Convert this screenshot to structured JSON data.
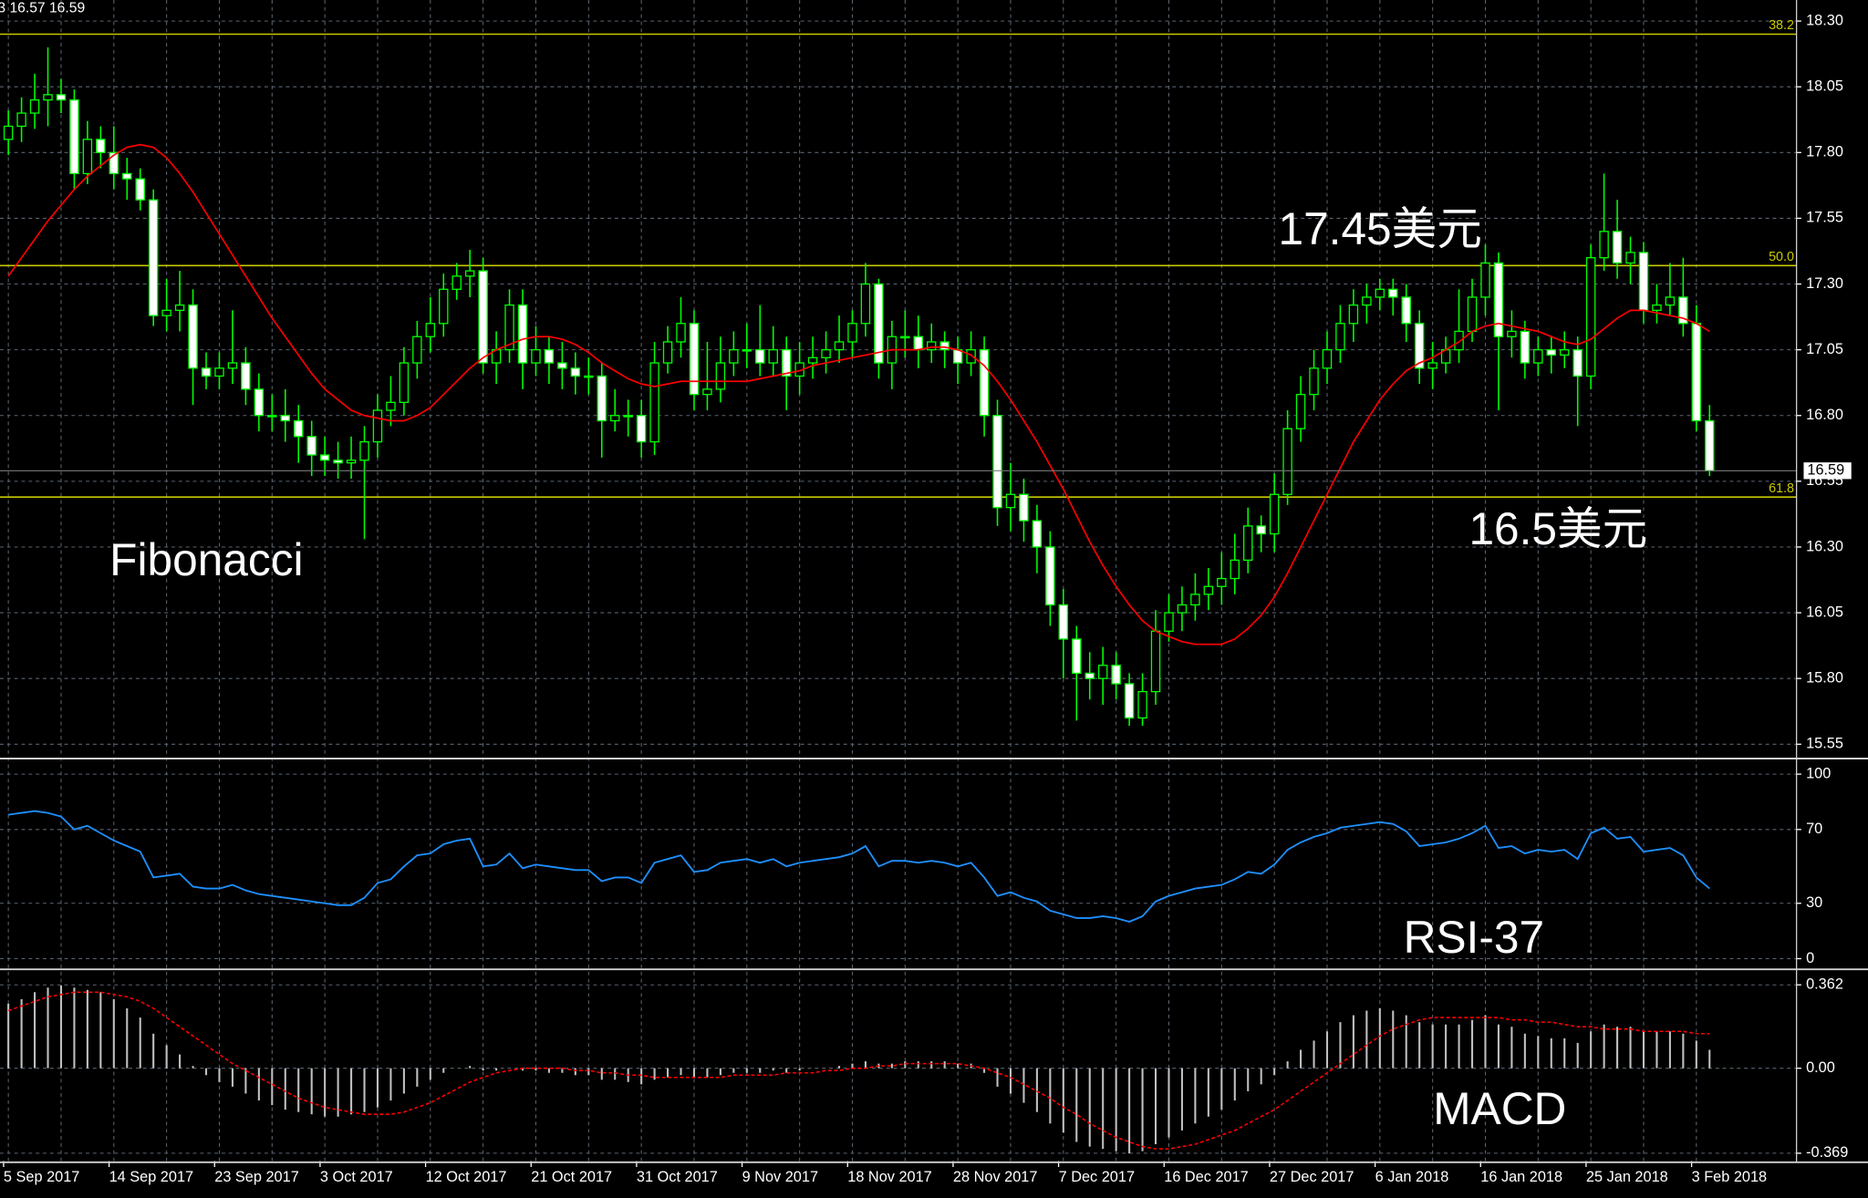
{
  "chart_data": [
    {
      "type": "candlestick",
      "header": "3 16.57 16.59",
      "annotations": [
        "17.45美元",
        "16.5美元",
        "Fibonacci"
      ],
      "candle_color": "#00ff00",
      "bull_fill": "#000000",
      "bear_fill": "#ffffff",
      "open": [
        17.85,
        17.9,
        17.95,
        18.0,
        18.02,
        18.0,
        17.72,
        17.85,
        17.8,
        17.72,
        17.7,
        17.62,
        17.18,
        17.2,
        17.22,
        16.98,
        16.95,
        16.98,
        17.0,
        16.9,
        16.8,
        16.8,
        16.78,
        16.72,
        16.65,
        16.63,
        16.62,
        16.63,
        16.7,
        16.82,
        16.85,
        17.0,
        17.1,
        17.15,
        17.28,
        17.33,
        17.35,
        17.0,
        17.05,
        17.22,
        17.0,
        17.05,
        17.0,
        16.98,
        16.95,
        16.95,
        16.78,
        16.8,
        16.8,
        16.7,
        17.0,
        17.08,
        17.15,
        16.88,
        16.9,
        17.0,
        17.05,
        17.05,
        17.0,
        17.05,
        16.95,
        17.0,
        17.02,
        17.05,
        17.08,
        17.15,
        17.3,
        17.0,
        17.1,
        17.1,
        17.05,
        17.08,
        17.05,
        17.0,
        17.05,
        16.8,
        16.45,
        16.5,
        16.4,
        16.3,
        16.08,
        15.95,
        15.82,
        15.8,
        15.85,
        15.78,
        15.65,
        15.75,
        15.98,
        16.05,
        16.08,
        16.12,
        16.15,
        16.18,
        16.25,
        16.38,
        16.35,
        16.5,
        16.75,
        16.88,
        16.98,
        17.05,
        17.15,
        17.22,
        17.25,
        17.28,
        17.25,
        17.15,
        16.98,
        17.0,
        17.05,
        17.12,
        17.25,
        17.38,
        17.1,
        17.12,
        17.0,
        17.05,
        17.03,
        17.05,
        16.95,
        17.4,
        17.5,
        17.38,
        17.42,
        17.2,
        17.22,
        17.25,
        17.15,
        16.78
      ],
      "high": [
        17.96,
        18.01,
        18.1,
        18.2,
        18.08,
        18.04,
        17.92,
        17.9,
        17.9,
        17.78,
        17.74,
        17.66,
        17.32,
        17.35,
        17.28,
        17.04,
        17.04,
        17.2,
        17.06,
        16.96,
        16.88,
        16.9,
        16.84,
        16.78,
        16.72,
        16.7,
        16.72,
        16.76,
        16.88,
        16.95,
        17.06,
        17.16,
        17.25,
        17.34,
        17.38,
        17.43,
        17.4,
        17.12,
        17.28,
        17.28,
        17.14,
        17.1,
        17.08,
        17.04,
        17.02,
        17.0,
        16.9,
        16.86,
        16.86,
        17.08,
        17.14,
        17.25,
        17.2,
        17.08,
        17.1,
        17.12,
        17.15,
        17.22,
        17.14,
        17.1,
        17.08,
        17.1,
        17.12,
        17.18,
        17.2,
        17.38,
        17.32,
        17.16,
        17.2,
        17.18,
        17.15,
        17.12,
        17.1,
        17.12,
        17.1,
        16.86,
        16.62,
        16.56,
        16.46,
        16.36,
        16.14,
        16.0,
        15.9,
        15.92,
        15.9,
        15.82,
        15.82,
        16.06,
        16.12,
        16.15,
        16.2,
        16.22,
        16.28,
        16.35,
        16.45,
        16.42,
        16.58,
        16.82,
        16.95,
        17.05,
        17.12,
        17.22,
        17.28,
        17.3,
        17.32,
        17.32,
        17.3,
        17.2,
        17.08,
        17.1,
        17.28,
        17.32,
        17.45,
        17.42,
        17.2,
        17.16,
        17.1,
        17.1,
        17.12,
        17.1,
        17.45,
        17.72,
        17.62,
        17.48,
        17.46,
        17.3,
        17.38,
        17.4,
        17.22,
        16.84
      ],
      "low": [
        17.79,
        17.84,
        17.89,
        17.9,
        17.95,
        17.66,
        17.68,
        17.74,
        17.66,
        17.62,
        17.58,
        17.14,
        17.12,
        17.12,
        16.84,
        16.9,
        16.9,
        16.92,
        16.84,
        16.74,
        16.74,
        16.7,
        16.62,
        16.57,
        16.57,
        16.56,
        16.56,
        16.33,
        16.64,
        16.76,
        16.8,
        16.94,
        17.04,
        17.1,
        17.24,
        17.25,
        16.96,
        16.92,
        17.0,
        16.9,
        16.95,
        16.92,
        16.9,
        16.88,
        16.88,
        16.64,
        16.74,
        16.72,
        16.64,
        16.65,
        16.96,
        17.02,
        16.82,
        16.82,
        16.85,
        16.95,
        16.98,
        16.95,
        16.95,
        16.82,
        16.88,
        16.94,
        16.96,
        17.0,
        17.02,
        17.1,
        16.94,
        16.9,
        17.02,
        16.98,
        17.0,
        16.98,
        16.92,
        16.95,
        16.72,
        16.38,
        16.36,
        16.32,
        16.2,
        16.0,
        15.8,
        15.64,
        15.72,
        15.7,
        15.72,
        15.62,
        15.62,
        15.7,
        15.94,
        15.98,
        16.02,
        16.06,
        16.08,
        16.12,
        16.2,
        16.28,
        16.28,
        16.46,
        16.7,
        16.82,
        16.92,
        17.0,
        17.08,
        17.15,
        17.2,
        17.18,
        17.08,
        16.92,
        16.9,
        16.96,
        17.0,
        17.08,
        17.18,
        16.82,
        17.02,
        16.94,
        16.95,
        16.96,
        16.98,
        16.76,
        16.9,
        17.35,
        17.32,
        17.3,
        17.15,
        17.15,
        17.18,
        17.1,
        16.74,
        16.57
      ],
      "close": [
        17.9,
        17.95,
        18.0,
        18.02,
        18.0,
        17.72,
        17.85,
        17.8,
        17.72,
        17.7,
        17.62,
        17.18,
        17.2,
        17.22,
        16.98,
        16.95,
        16.98,
        17.0,
        16.9,
        16.8,
        16.8,
        16.78,
        16.72,
        16.65,
        16.63,
        16.62,
        16.63,
        16.7,
        16.82,
        16.85,
        17.0,
        17.1,
        17.15,
        17.28,
        17.33,
        17.35,
        17.0,
        17.05,
        17.22,
        17.0,
        17.05,
        17.0,
        16.98,
        16.95,
        16.95,
        16.78,
        16.8,
        16.8,
        16.7,
        17.0,
        17.08,
        17.15,
        16.88,
        16.9,
        17.0,
        17.05,
        17.05,
        17.0,
        17.05,
        16.95,
        17.0,
        17.02,
        17.05,
        17.08,
        17.15,
        17.3,
        17.0,
        17.1,
        17.1,
        17.05,
        17.08,
        17.05,
        17.0,
        17.05,
        16.8,
        16.45,
        16.5,
        16.4,
        16.3,
        16.08,
        15.95,
        15.82,
        15.8,
        15.85,
        15.78,
        15.65,
        15.75,
        15.98,
        16.05,
        16.08,
        16.12,
        16.15,
        16.18,
        16.25,
        16.38,
        16.35,
        16.5,
        16.75,
        16.88,
        16.98,
        17.05,
        17.15,
        17.22,
        17.25,
        17.28,
        17.25,
        17.15,
        16.98,
        17.0,
        17.05,
        17.12,
        17.25,
        17.38,
        17.1,
        17.12,
        17.0,
        17.05,
        17.03,
        17.05,
        16.95,
        17.4,
        17.5,
        17.38,
        17.42,
        17.2,
        17.22,
        17.25,
        17.15,
        16.78,
        16.59
      ],
      "ma": {
        "color": "#ff0000",
        "values": [
          17.33,
          17.4,
          17.47,
          17.54,
          17.6,
          17.66,
          17.71,
          17.75,
          17.79,
          17.82,
          17.83,
          17.82,
          17.78,
          17.72,
          17.65,
          17.57,
          17.49,
          17.41,
          17.33,
          17.25,
          17.17,
          17.1,
          17.03,
          16.96,
          16.9,
          16.86,
          16.82,
          16.8,
          16.79,
          16.78,
          16.78,
          16.8,
          16.83,
          16.88,
          16.93,
          16.98,
          17.02,
          17.05,
          17.07,
          17.09,
          17.1,
          17.1,
          17.09,
          17.07,
          17.04,
          17.0,
          16.97,
          16.94,
          16.92,
          16.91,
          16.92,
          16.93,
          16.93,
          16.93,
          16.93,
          16.93,
          16.93,
          16.94,
          16.95,
          16.96,
          16.97,
          16.99,
          17.0,
          17.01,
          17.02,
          17.03,
          17.04,
          17.05,
          17.05,
          17.05,
          17.06,
          17.06,
          17.05,
          17.03,
          16.99,
          16.93,
          16.86,
          16.78,
          16.7,
          16.61,
          16.52,
          16.42,
          16.32,
          16.23,
          16.15,
          16.08,
          16.02,
          15.98,
          15.96,
          15.94,
          15.93,
          15.93,
          15.93,
          15.95,
          15.99,
          16.04,
          16.11,
          16.2,
          16.3,
          16.4,
          16.5,
          16.6,
          16.7,
          16.78,
          16.86,
          16.92,
          16.97,
          17.0,
          17.02,
          17.05,
          17.08,
          17.12,
          17.14,
          17.15,
          17.14,
          17.13,
          17.12,
          17.1,
          17.08,
          17.07,
          17.09,
          17.13,
          17.17,
          17.2,
          17.2,
          17.19,
          17.18,
          17.17,
          17.15,
          17.12
        ]
      },
      "fib_color": "#c8c800",
      "fibonacci": [
        {
          "level": "38.2",
          "price": 18.25
        },
        {
          "level": "50.0",
          "price": 17.37
        },
        {
          "level": "61.8",
          "price": 16.49
        }
      ],
      "last_price": 16.59,
      "ylim": [
        15.5,
        18.38
      ],
      "yticks": [
        {
          "value": 18.3,
          "label": "18.30"
        },
        18.05,
        {
          "value": 17.8,
          "label": "17.80"
        },
        17.55,
        {
          "value": 17.3,
          "label": "17.30"
        },
        17.05,
        {
          "value": 16.8,
          "label": "16.80"
        },
        16.55,
        {
          "value": 16.3,
          "label": "16.30"
        },
        16.05,
        {
          "value": 15.8,
          "label": "15.80"
        },
        15.55
      ],
      "grid": true
    },
    {
      "type": "line",
      "title": "RSI-37",
      "color": "#1e90ff",
      "values": [
        78,
        79,
        80,
        79,
        77,
        70,
        72,
        68,
        64,
        61,
        58,
        44,
        45,
        46,
        39,
        38,
        38,
        40,
        37,
        35,
        34,
        33,
        32,
        31,
        30,
        29,
        29,
        33,
        41,
        43,
        50,
        56,
        57,
        62,
        64,
        65,
        50,
        51,
        57,
        49,
        51,
        50,
        49,
        48,
        48,
        42,
        44,
        44,
        41,
        52,
        54,
        56,
        47,
        48,
        52,
        53,
        54,
        52,
        54,
        50,
        52,
        53,
        54,
        55,
        57,
        61,
        50,
        53,
        53,
        52,
        53,
        52,
        50,
        52,
        44,
        34,
        36,
        33,
        31,
        26,
        24,
        22,
        22,
        23,
        22,
        20,
        23,
        31,
        34,
        36,
        38,
        39,
        40,
        43,
        47,
        46,
        51,
        59,
        63,
        66,
        68,
        71,
        72,
        73,
        74,
        73,
        69,
        61,
        62,
        63,
        65,
        68,
        72,
        60,
        61,
        57,
        59,
        58,
        59,
        54,
        68,
        71,
        65,
        66,
        58,
        59,
        60,
        56,
        44,
        38
      ],
      "ylim": [
        -4.5,
        106.5
      ],
      "yticks": [
        100,
        70,
        30,
        0
      ],
      "grid": true
    },
    {
      "type": "macd",
      "title": "MACD",
      "histogram_color": "#c0c0c0",
      "signal_color": "#ff0000",
      "histogram": [
        0.28,
        0.3,
        0.33,
        0.35,
        0.36,
        0.35,
        0.34,
        0.33,
        0.3,
        0.26,
        0.22,
        0.15,
        0.1,
        0.06,
        0.01,
        -0.03,
        -0.06,
        -0.08,
        -0.11,
        -0.14,
        -0.16,
        -0.18,
        -0.19,
        -0.2,
        -0.21,
        -0.21,
        -0.2,
        -0.19,
        -0.17,
        -0.14,
        -0.11,
        -0.08,
        -0.05,
        -0.02,
        0.0,
        0.01,
        -0.01,
        -0.01,
        0.0,
        -0.01,
        -0.01,
        -0.02,
        -0.02,
        -0.03,
        -0.03,
        -0.05,
        -0.05,
        -0.06,
        -0.07,
        -0.05,
        -0.04,
        -0.03,
        -0.04,
        -0.04,
        -0.03,
        -0.02,
        -0.02,
        -0.02,
        -0.01,
        -0.02,
        -0.01,
        0.0,
        0.0,
        0.01,
        0.02,
        0.03,
        0.02,
        0.02,
        0.03,
        0.03,
        0.03,
        0.03,
        0.02,
        0.02,
        -0.02,
        -0.08,
        -0.11,
        -0.15,
        -0.19,
        -0.24,
        -0.28,
        -0.32,
        -0.34,
        -0.35,
        -0.36,
        -0.37,
        -0.36,
        -0.33,
        -0.3,
        -0.27,
        -0.24,
        -0.21,
        -0.18,
        -0.14,
        -0.1,
        -0.07,
        -0.03,
        0.03,
        0.08,
        0.12,
        0.16,
        0.2,
        0.23,
        0.25,
        0.26,
        0.25,
        0.23,
        0.2,
        0.19,
        0.19,
        0.19,
        0.21,
        0.23,
        0.19,
        0.18,
        0.15,
        0.14,
        0.13,
        0.13,
        0.11,
        0.16,
        0.19,
        0.18,
        0.18,
        0.16,
        0.16,
        0.16,
        0.15,
        0.12,
        0.08
      ],
      "signal": [
        0.25,
        0.27,
        0.29,
        0.31,
        0.32,
        0.33,
        0.33,
        0.33,
        0.32,
        0.31,
        0.29,
        0.26,
        0.22,
        0.18,
        0.14,
        0.1,
        0.06,
        0.02,
        -0.01,
        -0.04,
        -0.07,
        -0.1,
        -0.13,
        -0.15,
        -0.17,
        -0.18,
        -0.19,
        -0.2,
        -0.2,
        -0.2,
        -0.19,
        -0.17,
        -0.15,
        -0.12,
        -0.09,
        -0.06,
        -0.04,
        -0.02,
        -0.01,
        0.0,
        0.0,
        0.0,
        0.0,
        -0.01,
        -0.01,
        -0.02,
        -0.02,
        -0.03,
        -0.03,
        -0.04,
        -0.04,
        -0.04,
        -0.04,
        -0.04,
        -0.04,
        -0.03,
        -0.03,
        -0.03,
        -0.03,
        -0.02,
        -0.02,
        -0.02,
        -0.01,
        -0.01,
        0.0,
        0.0,
        0.01,
        0.01,
        0.02,
        0.02,
        0.02,
        0.02,
        0.02,
        0.01,
        0.0,
        -0.02,
        -0.04,
        -0.07,
        -0.1,
        -0.13,
        -0.17,
        -0.2,
        -0.24,
        -0.27,
        -0.3,
        -0.32,
        -0.34,
        -0.35,
        -0.35,
        -0.34,
        -0.33,
        -0.31,
        -0.29,
        -0.27,
        -0.24,
        -0.21,
        -0.18,
        -0.14,
        -0.1,
        -0.06,
        -0.02,
        0.02,
        0.06,
        0.1,
        0.14,
        0.17,
        0.19,
        0.21,
        0.22,
        0.22,
        0.22,
        0.22,
        0.22,
        0.22,
        0.21,
        0.21,
        0.2,
        0.2,
        0.19,
        0.18,
        0.18,
        0.17,
        0.17,
        0.17,
        0.16,
        0.16,
        0.16,
        0.16,
        0.15,
        0.15
      ],
      "categories": [
        "5 Sep 2017",
        null,
        null,
        null,
        null,
        null,
        null,
        null,
        "14 Sep 2017",
        null,
        null,
        null,
        null,
        null,
        null,
        null,
        "23 Sep 2017",
        null,
        null,
        null,
        null,
        null,
        null,
        null,
        "3 Oct 2017",
        null,
        null,
        null,
        null,
        null,
        null,
        null,
        "12 Oct 2017",
        null,
        null,
        null,
        null,
        null,
        null,
        null,
        "21 Oct 2017",
        null,
        null,
        null,
        null,
        null,
        null,
        null,
        "31 Oct 2017",
        null,
        null,
        null,
        null,
        null,
        null,
        null,
        "9 Nov 2017",
        null,
        null,
        null,
        null,
        null,
        null,
        null,
        "18 Nov 2017",
        null,
        null,
        null,
        null,
        null,
        null,
        null,
        "28 Nov 2017",
        null,
        null,
        null,
        null,
        null,
        null,
        null,
        "7 Dec 2017",
        null,
        null,
        null,
        null,
        null,
        null,
        null,
        "16 Dec 2017",
        null,
        null,
        null,
        null,
        null,
        null,
        null,
        "27 Dec 2017",
        null,
        null,
        null,
        null,
        null,
        null,
        null,
        "6 Jan 2018",
        null,
        null,
        null,
        null,
        null,
        null,
        null,
        "16 Jan 2018",
        null,
        null,
        null,
        null,
        null,
        null,
        null,
        "25 Jan 2018",
        null,
        null,
        null,
        null,
        null,
        null,
        null,
        "3 Feb 2018",
        null
      ],
      "ylim": [
        -0.403,
        0.419
      ],
      "yticks": [
        0.362,
        {
          "value": 0,
          "label": "0.00"
        },
        -0.369
      ],
      "grid": true
    }
  ]
}
